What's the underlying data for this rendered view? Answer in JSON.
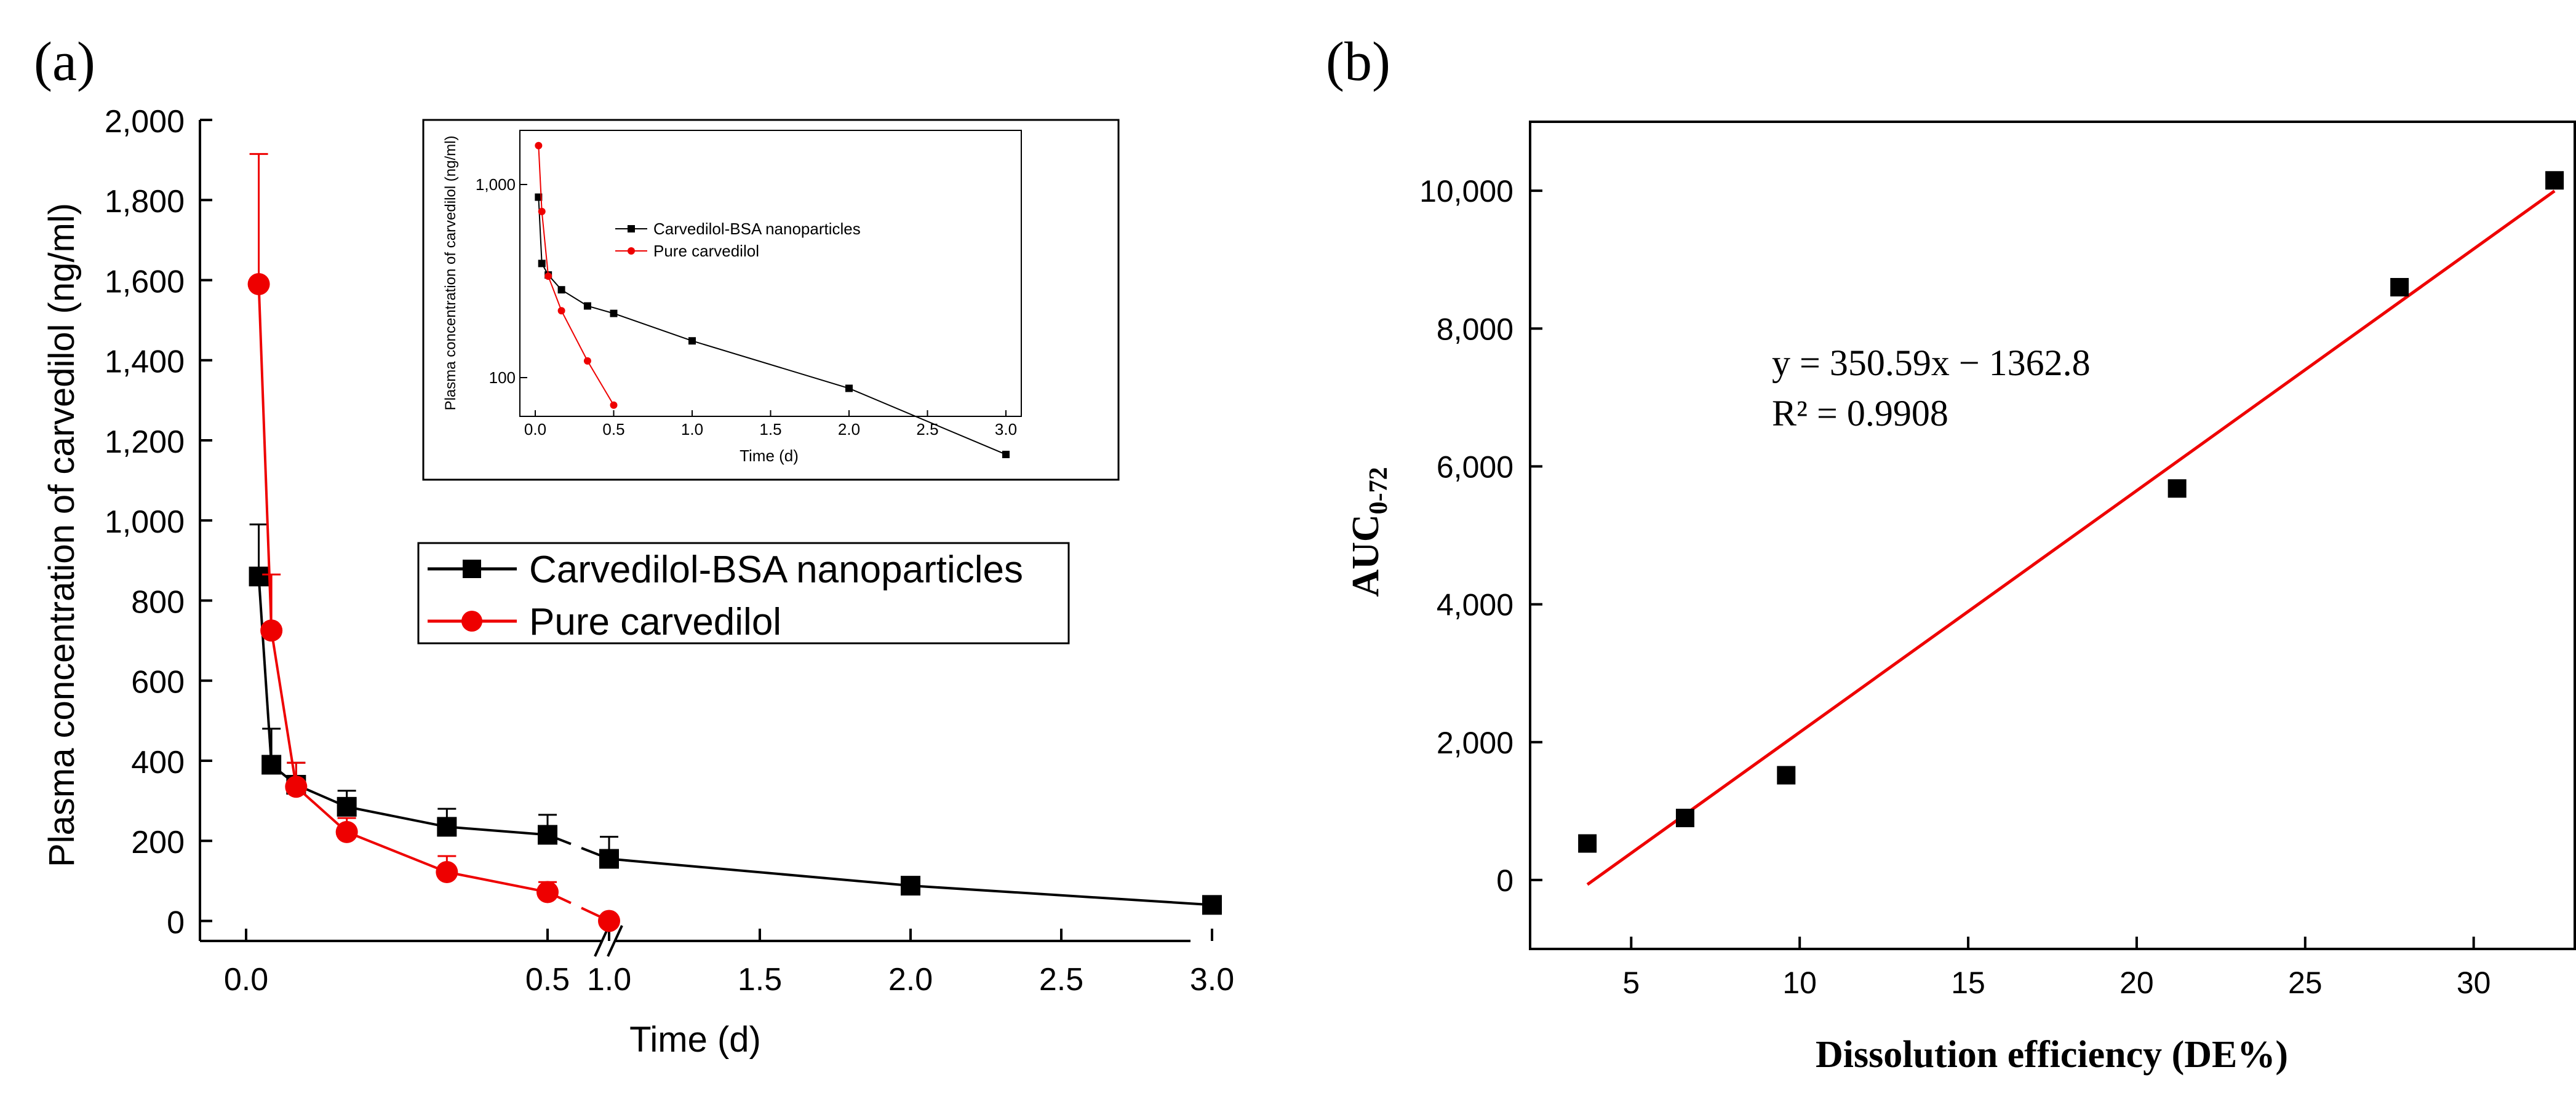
{
  "figure": {
    "panel_a_label": "(a)",
    "panel_b_label": "(b)"
  },
  "colors": {
    "black_series": "#000000",
    "red_series": "#ee0000",
    "fit_line": "#ee0000",
    "axis": "#000000"
  },
  "chart_data": [
    {
      "id": "panel-a",
      "type": "line",
      "title": "",
      "xlabel": "Time (d)",
      "ylabel": "Plasma concentration of carvedilol (ng/ml)",
      "axis_break": "between 0.5 and 1.0 (//)",
      "xticks": [
        "0.0",
        "0.5",
        "1.0",
        "1.5",
        "2.0",
        "2.5",
        "3.0"
      ],
      "yticks": [
        "0",
        "200",
        "400",
        "600",
        "800",
        "1,000",
        "1,200",
        "1,400",
        "1,600",
        "1,800",
        "2,000"
      ],
      "ylim": [
        -50,
        2000
      ],
      "legend": {
        "position": "middle-right",
        "entries": [
          "Carvedilol-BSA nanoparticles",
          "Pure carvedilol"
        ]
      },
      "series": [
        {
          "name": "Carvedilol-BSA nanoparticles",
          "marker": "square",
          "color": "#000000",
          "x": [
            0.021,
            0.042,
            0.083,
            0.167,
            0.333,
            0.5,
            1.0,
            2.0,
            3.0
          ],
          "y": [
            860,
            390,
            340,
            285,
            235,
            215,
            155,
            88,
            40
          ],
          "err": [
            130,
            90,
            55,
            40,
            45,
            50,
            55,
            20,
            12
          ]
        },
        {
          "name": "Pure carvedilol",
          "marker": "circle",
          "color": "#ee0000",
          "x": [
            0.021,
            0.042,
            0.083,
            0.167,
            0.333,
            0.5,
            1.0
          ],
          "y": [
            1590,
            725,
            335,
            222,
            122,
            72,
            0
          ],
          "err": [
            325,
            140,
            60,
            35,
            40,
            25,
            0
          ]
        }
      ]
    },
    {
      "id": "panel-a-inset",
      "type": "line",
      "scale": "log-y",
      "xlabel": "Time (d)",
      "ylabel": "Plasma concentration of carvedilol (ng/ml)",
      "xticks": [
        "0.0",
        "0.5",
        "1.0",
        "1.5",
        "2.0",
        "2.5",
        "3.0"
      ],
      "yticks": [
        "100",
        "1,000"
      ],
      "legend": {
        "position": "top-right",
        "entries": [
          "Carvedilol-BSA nanoparticles",
          "Pure carvedilol"
        ]
      },
      "series": [
        {
          "name": "Carvedilol-BSA nanoparticles",
          "x": [
            0.021,
            0.042,
            0.083,
            0.167,
            0.333,
            0.5,
            1.0,
            2.0,
            3.0
          ],
          "y": [
            860,
            390,
            340,
            285,
            235,
            215,
            155,
            88,
            40
          ]
        },
        {
          "name": "Pure carvedilol",
          "x": [
            0.021,
            0.042,
            0.083,
            0.167,
            0.333,
            0.5
          ],
          "y": [
            1590,
            725,
            335,
            222,
            122,
            72
          ]
        }
      ]
    },
    {
      "id": "panel-b",
      "type": "scatter",
      "xlabel": "Dissolution efficiency (DE%)",
      "ylabel_main": "AUC",
      "ylabel_sub": "0-72",
      "xticks": [
        "5",
        "10",
        "15",
        "20",
        "25",
        "30"
      ],
      "yticks": [
        "0",
        "2,000",
        "4,000",
        "6,000",
        "8,000",
        "10,000"
      ],
      "xlim": [
        2.0,
        33.0
      ],
      "ylim": [
        -1000,
        11000
      ],
      "points": {
        "x": [
          3.7,
          6.6,
          9.6,
          21.2,
          27.8,
          32.4
        ],
        "y": [
          530,
          900,
          1520,
          5680,
          8600,
          10150
        ]
      },
      "fit": {
        "slope": 350.59,
        "intercept": -1362.8,
        "x_range": [
          3.7,
          32.4
        ]
      },
      "annotations": [
        "y = 350.59x − 1362.8",
        "R² = 0.9908"
      ]
    }
  ]
}
